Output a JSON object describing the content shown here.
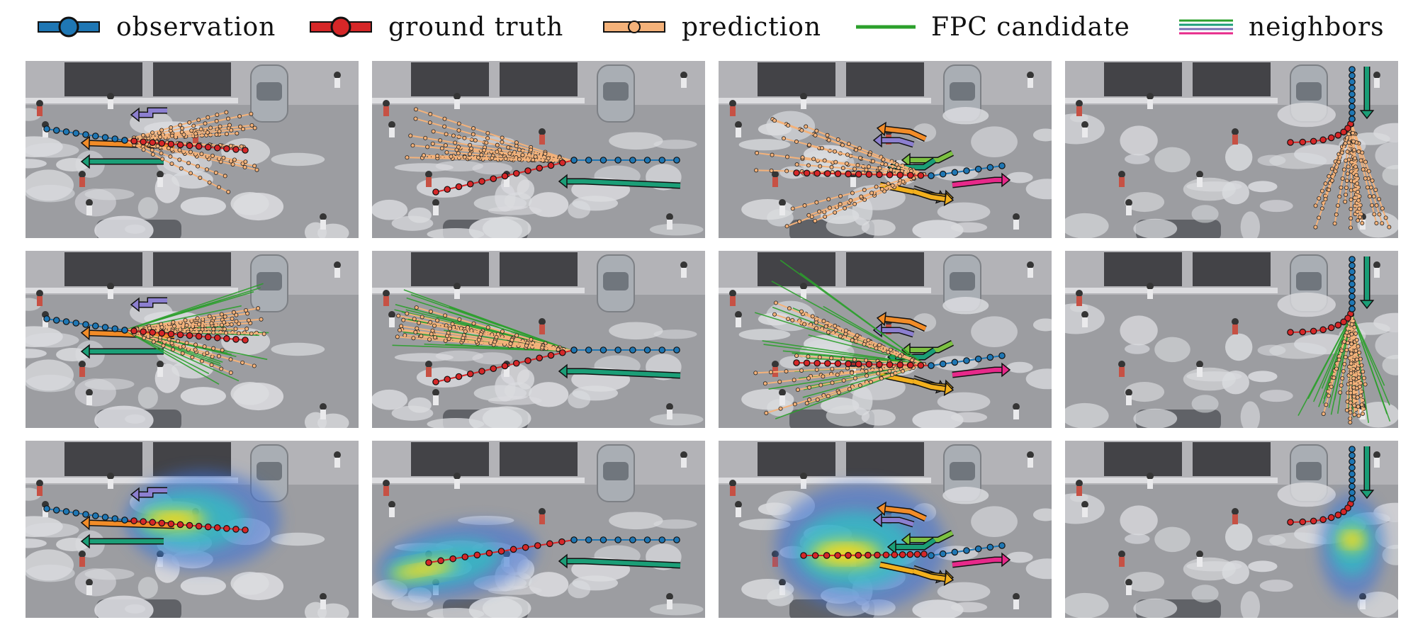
{
  "legend": [
    {
      "key": "observation",
      "label": "observation",
      "color": "#1f77b4"
    },
    {
      "key": "ground_truth",
      "label": "ground truth",
      "color": "#d62728"
    },
    {
      "key": "prediction",
      "label": "prediction",
      "color": "#f4b27a"
    },
    {
      "key": "fpc_candidate",
      "label": "FPC candidate",
      "color": "#2ca02c"
    },
    {
      "key": "neighbors",
      "label": "neighbors",
      "colors": [
        "#2ca02c",
        "#e7298a",
        "#7570b3",
        "#1b9e77"
      ]
    }
  ],
  "grid": {
    "rows": 3,
    "cols": 4,
    "row_kinds": [
      "prediction",
      "fpc_candidate",
      "heatmap"
    ]
  },
  "colors": {
    "observation": "#1f77b4",
    "ground_truth": "#d62728",
    "prediction": "#f4b27a",
    "fpc": "#2ca02c",
    "neighbor_teal": "#1b9e77",
    "neighbor_purple": "#8c7fd0",
    "neighbor_orange": "#f28c28",
    "neighbor_green": "#7cc142",
    "neighbor_pink": "#e7298a",
    "neighbor_gold": "#f2b01e",
    "neighbor_gray": "#888888"
  }
}
